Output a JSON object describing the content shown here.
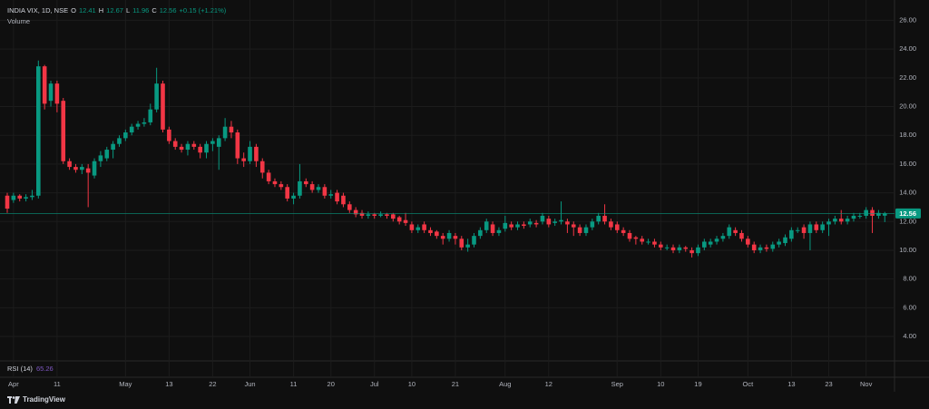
{
  "chart_data": {
    "type": "candlestick",
    "symbol": "INDIA VIX, 1D, NSE",
    "ohlc_labels": {
      "open": "O",
      "high": "H",
      "low": "L",
      "close": "C"
    },
    "change": "+0.15 (+1.21%)",
    "volume_label": "Volume",
    "rsi_label": "RSI (14)",
    "rsi_value": 65.26,
    "brand": "TradingView",
    "up_color": "#089981",
    "down_color": "#f23645",
    "grid": true,
    "ylim": [
      2.3,
      27.1
    ],
    "yticks": [
      {
        "value": 4,
        "label": "4.00"
      },
      {
        "value": 6,
        "label": "6.00"
      },
      {
        "value": 8,
        "label": "8.00"
      },
      {
        "value": 10,
        "label": "10.00"
      },
      {
        "value": 12,
        "label": "12.00"
      },
      {
        "value": 14,
        "label": "14.00"
      },
      {
        "value": 16,
        "label": "16.00"
      },
      {
        "value": 18,
        "label": "18.00"
      },
      {
        "value": 20,
        "label": "20.00"
      },
      {
        "value": 22,
        "label": "22.00"
      },
      {
        "value": 24,
        "label": "24.00"
      },
      {
        "value": 26,
        "label": "26.00"
      }
    ],
    "categories": [
      null,
      "Apr",
      null,
      null,
      null,
      null,
      null,
      null,
      "11",
      null,
      null,
      null,
      null,
      null,
      null,
      null,
      null,
      null,
      null,
      "May",
      null,
      null,
      null,
      null,
      null,
      null,
      "13",
      null,
      null,
      null,
      null,
      null,
      null,
      "22",
      null,
      null,
      null,
      null,
      null,
      "Jun",
      null,
      null,
      null,
      null,
      null,
      null,
      "11",
      null,
      null,
      null,
      null,
      null,
      "20",
      null,
      null,
      null,
      null,
      null,
      null,
      "Jul",
      null,
      null,
      null,
      null,
      null,
      "10",
      null,
      null,
      null,
      null,
      null,
      null,
      "21",
      null,
      null,
      null,
      null,
      null,
      null,
      null,
      "Aug",
      null,
      null,
      null,
      null,
      null,
      null,
      "12",
      null,
      null,
      null,
      null,
      null,
      null,
      null,
      null,
      null,
      null,
      "Sep",
      null,
      null,
      null,
      null,
      null,
      null,
      "10",
      null,
      null,
      null,
      null,
      null,
      "19",
      null,
      null,
      null,
      null,
      null,
      null,
      null,
      "Oct",
      null,
      null,
      null,
      null,
      null,
      null,
      "13",
      null,
      null,
      null,
      null,
      null,
      "23",
      null,
      null,
      null,
      null,
      null,
      "Nov",
      null,
      null,
      null
    ],
    "open": [
      13.8,
      13.5,
      13.8,
      13.6,
      13.7,
      13.8,
      22.8,
      20.4,
      21.6,
      20.4,
      16.2,
      15.8,
      15.6,
      15.7,
      15.2,
      16.2,
      16.4,
      17.0,
      17.4,
      17.8,
      18.2,
      18.6,
      18.8,
      18.9,
      19.8,
      21.6,
      18.4,
      17.6,
      17.2,
      17.0,
      17.4,
      17.2,
      16.8,
      17.4,
      17.2,
      17.8,
      18.6,
      18.2,
      16.4,
      16.2,
      17.2,
      16.2,
      15.4,
      14.8,
      14.6,
      14.4,
      13.6,
      13.8,
      14.8,
      14.6,
      14.2,
      14.4,
      13.8,
      14.0,
      13.8,
      13.2,
      12.8,
      12.6,
      12.4,
      12.5,
      12.4,
      12.5,
      12.5,
      12.3,
      12.1,
      11.8,
      11.4,
      11.8,
      11.4,
      11.3,
      11.0,
      10.8,
      11.0,
      10.8,
      10.2,
      10.4,
      11.0,
      11.4,
      11.8,
      11.2,
      11.5,
      11.8,
      11.6,
      11.8,
      11.8,
      11.9,
      12.0,
      12.2,
      11.9,
      12.0,
      12.0,
      11.8,
      11.6,
      11.2,
      11.6,
      12.0,
      12.4,
      12.0,
      11.8,
      11.4,
      11.2,
      10.9,
      10.8,
      10.6,
      10.6,
      10.4,
      10.2,
      10.2,
      10.0,
      10.2,
      10.0,
      9.8,
      10.2,
      10.4,
      10.6,
      10.8,
      11.0,
      11.4,
      11.2,
      10.8,
      10.4,
      10.0,
      10.2,
      10.1,
      10.4,
      10.5,
      10.8,
      11.4,
      11.6,
      11.2,
      11.8,
      11.4,
      11.8,
      12.0,
      12.2,
      12.0,
      12.2,
      12.4,
      12.4,
      12.8,
      12.4,
      12.41
    ],
    "high": [
      14.0,
      14.0,
      13.9,
      13.9,
      14.2,
      23.2,
      22.9,
      21.8,
      21.8,
      20.6,
      16.4,
      16.0,
      16.0,
      16.0,
      16.4,
      16.9,
      17.2,
      17.6,
      18.0,
      18.4,
      18.8,
      19.0,
      19.2,
      20.2,
      22.7,
      21.8,
      18.6,
      17.8,
      17.4,
      17.6,
      17.6,
      17.4,
      17.6,
      17.8,
      18.0,
      19.2,
      19.0,
      18.4,
      16.8,
      17.6,
      17.4,
      16.4,
      15.6,
      15.0,
      14.8,
      14.6,
      14.0,
      16.0,
      15.0,
      14.8,
      14.6,
      14.6,
      14.2,
      14.2,
      14.0,
      13.4,
      13.0,
      12.8,
      12.7,
      12.6,
      12.7,
      12.6,
      12.6,
      12.4,
      12.6,
      12.0,
      11.8,
      12.0,
      11.6,
      11.4,
      11.2,
      11.4,
      11.2,
      11.0,
      10.8,
      11.2,
      11.6,
      12.2,
      12.0,
      11.6,
      12.4,
      12.0,
      12.0,
      12.0,
      12.2,
      12.1,
      12.6,
      12.4,
      12.2,
      13.4,
      12.2,
      12.0,
      11.8,
      11.8,
      12.2,
      12.6,
      13.2,
      12.2,
      12.0,
      11.6,
      11.4,
      11.0,
      11.0,
      10.8,
      10.8,
      10.6,
      10.4,
      10.4,
      10.4,
      10.3,
      10.2,
      10.4,
      10.8,
      10.8,
      11.0,
      11.2,
      11.8,
      11.6,
      11.4,
      11.0,
      10.6,
      10.4,
      10.4,
      10.6,
      10.8,
      11.1,
      11.6,
      11.6,
      11.8,
      12.0,
      12.0,
      12.0,
      12.2,
      12.4,
      12.8,
      12.4,
      12.6,
      12.6,
      13.0,
      13.0,
      12.8,
      12.67
    ],
    "low": [
      12.6,
      13.3,
      13.4,
      13.4,
      13.5,
      13.6,
      19.8,
      20.0,
      19.6,
      16.0,
      15.6,
      15.4,
      15.3,
      13.0,
      15.0,
      15.8,
      16.2,
      16.4,
      17.2,
      17.6,
      18.0,
      18.4,
      18.6,
      18.7,
      19.6,
      18.2,
      17.4,
      17.0,
      16.8,
      16.6,
      17.0,
      16.4,
      16.4,
      16.9,
      15.6,
      17.6,
      17.8,
      16.0,
      15.8,
      16.0,
      15.8,
      15.0,
      14.6,
      14.4,
      14.2,
      13.4,
      13.2,
      13.6,
      14.4,
      14.0,
      14.0,
      13.6,
      13.6,
      13.2,
      13.0,
      12.6,
      12.3,
      12.2,
      12.2,
      12.2,
      12.3,
      12.2,
      12.0,
      11.8,
      11.7,
      11.2,
      11.2,
      11.2,
      11.0,
      10.8,
      10.4,
      10.6,
      10.4,
      10.0,
      9.9,
      10.2,
      10.8,
      11.2,
      11.0,
      11.0,
      11.3,
      11.4,
      11.4,
      11.5,
      11.6,
      11.6,
      11.8,
      11.6,
      11.7,
      11.8,
      11.2,
      11.0,
      11.0,
      11.0,
      11.4,
      11.8,
      11.8,
      11.4,
      11.2,
      11.0,
      10.6,
      10.4,
      10.4,
      10.4,
      10.2,
      10.0,
      10.0,
      9.8,
      9.8,
      9.9,
      9.5,
      9.6,
      10.0,
      10.2,
      10.4,
      10.6,
      10.8,
      11.0,
      10.6,
      10.2,
      9.8,
      9.8,
      9.9,
      9.9,
      10.2,
      10.3,
      10.6,
      11.2,
      10.8,
      10.0,
      11.2,
      11.2,
      11.0,
      11.8,
      11.8,
      11.8,
      12.0,
      12.2,
      12.2,
      11.2,
      12.2,
      11.96
    ],
    "close": [
      12.9,
      13.8,
      13.6,
      13.7,
      13.8,
      22.8,
      20.2,
      21.6,
      20.2,
      16.2,
      15.8,
      15.6,
      15.8,
      15.4,
      16.2,
      16.6,
      17.0,
      17.4,
      17.8,
      18.2,
      18.6,
      18.8,
      18.9,
      19.8,
      21.6,
      18.4,
      17.6,
      17.2,
      17.0,
      17.4,
      17.2,
      16.8,
      17.4,
      17.6,
      17.8,
      18.6,
      18.2,
      16.4,
      16.2,
      17.2,
      16.2,
      15.4,
      14.8,
      14.6,
      14.4,
      13.6,
      13.8,
      14.8,
      14.6,
      14.2,
      14.4,
      13.8,
      13.9,
      13.4,
      13.2,
      12.8,
      12.5,
      12.4,
      12.5,
      12.4,
      12.5,
      12.4,
      12.2,
      12.0,
      11.9,
      11.4,
      11.6,
      11.4,
      11.2,
      11.0,
      10.8,
      11.2,
      10.8,
      10.2,
      10.4,
      11.0,
      11.4,
      12.0,
      11.2,
      11.4,
      11.9,
      11.6,
      11.8,
      11.7,
      12.0,
      11.8,
      12.4,
      11.8,
      12.0,
      12.1,
      11.8,
      11.6,
      11.2,
      11.6,
      12.0,
      12.4,
      12.0,
      11.6,
      11.4,
      11.2,
      10.8,
      10.8,
      10.6,
      10.6,
      10.4,
      10.2,
      10.2,
      10.0,
      10.2,
      10.1,
      9.8,
      10.2,
      10.6,
      10.6,
      10.8,
      11.0,
      11.6,
      11.2,
      10.8,
      10.4,
      10.0,
      10.2,
      10.1,
      10.4,
      10.6,
      10.9,
      11.4,
      11.4,
      11.2,
      11.8,
      11.4,
      11.8,
      12.0,
      12.2,
      12.0,
      12.2,
      12.4,
      12.4,
      12.8,
      12.4,
      12.6,
      12.56
    ]
  }
}
